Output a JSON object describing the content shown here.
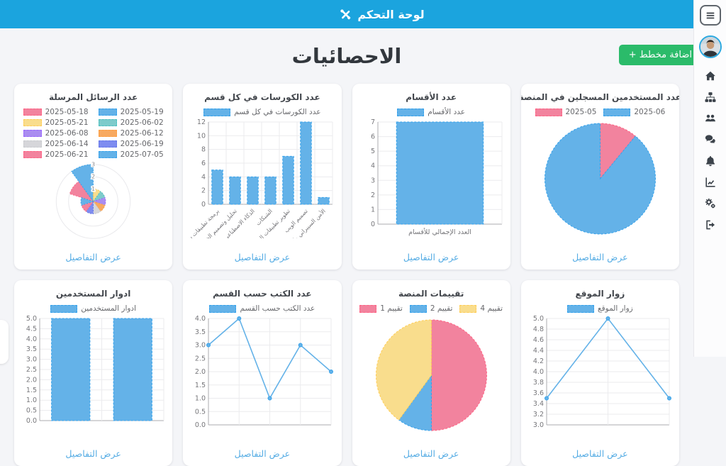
{
  "topbar": {
    "title": "لوحة التحكم"
  },
  "sidebar": {
    "items": [
      "home",
      "sitemap",
      "users",
      "comments",
      "notifications",
      "chart-line",
      "settings",
      "sign-out"
    ]
  },
  "page": {
    "heading": "الاحصائيات",
    "add_chart_button": "اضافة مخطط +",
    "details_link": "عرض التفاصيل"
  },
  "palette": {
    "blue": "#64B2E8",
    "blue_border": "#36A2EB",
    "pink": "#F2839E",
    "pink_border": "#FF6384",
    "yellow": "#F9DD8D",
    "yellow_border": "#FFCD56",
    "teal": "#7ECBCB",
    "teal_border": "#4BC0C0",
    "purple": "#AA8DF0",
    "purple_border": "#9966FF",
    "orange": "#F7A960",
    "orange_border": "#FF9F40",
    "gray": "#D6D6DA",
    "gray_border": "#C9CBCF",
    "indigo": "#7E8CF0",
    "indigo_border": "#6678E8"
  },
  "chart_data": [
    {
      "key": "users",
      "title": "عدد المستخدمين المسجلين في المنصة",
      "type": "pie",
      "slices": [
        {
          "label": "2025-05",
          "color": "pink",
          "pct": 11
        },
        {
          "label": "2025-06",
          "color": "blue",
          "pct": 89
        }
      ],
      "details_link": true
    },
    {
      "key": "sections",
      "title": "عدد الأقسام",
      "type": "bar",
      "series_label": "عدد الأقسام",
      "categories": [
        "العدد الإجمالي للأقسام"
      ],
      "values": [
        7
      ],
      "ymax": 7,
      "ystep": 1,
      "decimals": 0,
      "details_link": true
    },
    {
      "key": "courses",
      "title": "عدد الكورسات في كل قسم",
      "type": "bar",
      "series_label": "عدد الكورسات في كل قسم",
      "categories": [
        "برمجة تطبيقات سطح المكتب",
        "تحليل وتصميم الخوارزميات",
        "الذكاء الاصطناعي",
        "الشبكات",
        "تطوير تطبيقات الموبايل",
        "تصميم الويب",
        "الأمن السيبراني والشبكات"
      ],
      "values": [
        5,
        4,
        4,
        4,
        7,
        12,
        1
      ],
      "ymax": 12,
      "ystep": 2,
      "decimals": 0,
      "rotated_labels": true,
      "details_link": true
    },
    {
      "key": "messages",
      "title": "عدد الرسائل المرسلة",
      "type": "polar_area",
      "segments": [
        {
          "label": "2025-05-18",
          "color": "pink",
          "value": 2
        },
        {
          "label": "2025-05-19",
          "color": "blue",
          "value": 3
        },
        {
          "label": "2025-05-21",
          "color": "yellow",
          "value": 1
        },
        {
          "label": "2025-06-02",
          "color": "teal",
          "value": 1
        },
        {
          "label": "2025-06-08",
          "color": "purple",
          "value": 1
        },
        {
          "label": "2025-06-12",
          "color": "orange",
          "value": 1
        },
        {
          "label": "2025-06-14",
          "color": "gray",
          "value": 1
        },
        {
          "label": "2025-06-19",
          "color": "indigo",
          "value": 1
        },
        {
          "label": "2025-06-21",
          "color": "pink",
          "value": 1
        },
        {
          "label": "2025-07-05",
          "color": "blue",
          "value": 1
        }
      ],
      "rticks": [
        1,
        2,
        3
      ],
      "details_link": true
    },
    {
      "key": "visitors",
      "title": "زوار الموقع",
      "type": "line",
      "series_label": "زوار الموقع",
      "values": [
        3.5,
        5,
        3.5
      ],
      "ymax": 5,
      "ymin": 3,
      "ystep": 0.2,
      "decimals": 1,
      "details_link": true
    },
    {
      "key": "ratings",
      "title": "تقييمات المنصة",
      "type": "pie",
      "slices": [
        {
          "label": "تقييم 1",
          "color": "pink",
          "pct": 50
        },
        {
          "label": "تقييم 2",
          "color": "blue",
          "pct": 10
        },
        {
          "label": "تقييم 4",
          "color": "yellow",
          "pct": 40
        }
      ],
      "details_link": true
    },
    {
      "key": "books",
      "title": "عدد الكتب حسب القسم",
      "type": "line",
      "series_label": "عدد الكتب حسب القسم",
      "values": [
        3,
        4,
        1,
        3,
        2
      ],
      "ymax": 4,
      "ymin": 0,
      "ystep": 0.5,
      "decimals": 1,
      "details_link": true
    },
    {
      "key": "roles",
      "title": "ادوار المستخدمين",
      "type": "bar",
      "series_label": "ادوار المستخدمين",
      "categories": [
        "",
        ""
      ],
      "values": [
        5,
        5
      ],
      "ymax": 5,
      "ystep": 0.5,
      "decimals": 1,
      "details_link": true
    }
  ]
}
